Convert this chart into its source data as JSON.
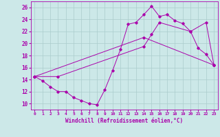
{
  "xlabel": "Windchill (Refroidissement éolien,°C)",
  "background_color": "#cce8e8",
  "grid_color": "#aacccc",
  "line_color": "#aa00aa",
  "xlim": [
    -0.5,
    23.5
  ],
  "ylim": [
    9,
    27
  ],
  "xticks": [
    0,
    1,
    2,
    3,
    4,
    5,
    6,
    7,
    8,
    9,
    10,
    11,
    12,
    13,
    14,
    15,
    16,
    17,
    18,
    19,
    20,
    21,
    22,
    23
  ],
  "yticks": [
    10,
    12,
    14,
    16,
    18,
    20,
    22,
    24,
    26
  ],
  "series": [
    {
      "x": [
        0,
        1,
        2,
        3,
        4,
        5,
        6,
        7,
        8,
        9,
        10,
        11,
        12,
        13,
        14,
        15,
        16,
        17,
        18,
        19,
        20,
        21,
        22,
        23
      ],
      "y": [
        14.5,
        13.8,
        12.8,
        12.0,
        12.0,
        11.0,
        10.5,
        10.0,
        9.8,
        12.3,
        15.5,
        19.0,
        23.2,
        23.5,
        24.8,
        26.2,
        24.5,
        24.8,
        23.8,
        23.3,
        22.0,
        19.2,
        18.2,
        16.4
      ]
    },
    {
      "x": [
        0,
        3,
        14,
        15,
        16,
        20,
        22,
        23
      ],
      "y": [
        14.5,
        14.5,
        19.5,
        21.5,
        23.5,
        22.0,
        23.5,
        16.4
      ]
    },
    {
      "x": [
        0,
        14,
        23
      ],
      "y": [
        14.5,
        21.0,
        16.4
      ]
    }
  ]
}
